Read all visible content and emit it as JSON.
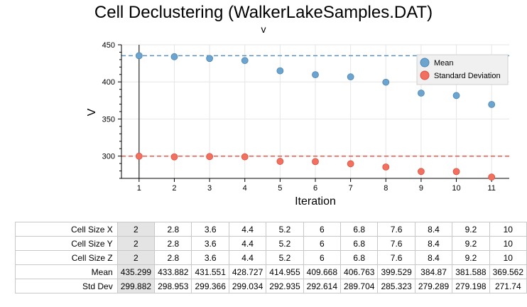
{
  "title": "Cell Declustering (WalkerLakeSamples.DAT)",
  "subtitle": "v",
  "chart_data": {
    "type": "scatter",
    "xlabel": "Iteration",
    "ylabel": "V",
    "x": [
      1,
      2,
      3,
      4,
      5,
      6,
      7,
      8,
      9,
      10,
      11
    ],
    "xlim": [
      0.5,
      11.5
    ],
    "ylim": [
      270,
      450
    ],
    "xticks": [
      "1",
      "2",
      "3",
      "4",
      "5",
      "6",
      "7",
      "8",
      "9",
      "10",
      "11"
    ],
    "yticks": [
      "300",
      "350",
      "400",
      "450"
    ],
    "grid": true,
    "legend_position": "top-right",
    "selected_iteration": 1,
    "series": [
      {
        "name": "Mean",
        "color": "#6aa4cf",
        "reference_value": 435.299,
        "values": [
          435.299,
          433.882,
          431.551,
          428.727,
          414.955,
          409.668,
          406.763,
          399.529,
          384.87,
          381.588,
          369.562
        ]
      },
      {
        "name": "Standard Deviation",
        "color": "#f2705f",
        "reference_value": 299.882,
        "values": [
          299.882,
          298.953,
          299.366,
          299.034,
          292.935,
          292.614,
          289.704,
          285.323,
          279.289,
          279.198,
          271.74
        ]
      }
    ]
  },
  "table": {
    "rows": [
      {
        "label": "Cell Size X",
        "values": [
          "2",
          "2.8",
          "3.6",
          "4.4",
          "5.2",
          "6",
          "6.8",
          "7.6",
          "8.4",
          "9.2",
          "10"
        ]
      },
      {
        "label": "Cell Size Y",
        "values": [
          "2",
          "2.8",
          "3.6",
          "4.4",
          "5.2",
          "6",
          "6.8",
          "7.6",
          "8.4",
          "9.2",
          "10"
        ]
      },
      {
        "label": "Cell Size Z",
        "values": [
          "2",
          "2.8",
          "3.6",
          "4.4",
          "5.2",
          "6",
          "6.8",
          "7.6",
          "8.4",
          "9.2",
          "10"
        ]
      },
      {
        "label": "Mean",
        "values": [
          "435.299",
          "433.882",
          "431.551",
          "428.727",
          "414.955",
          "409.668",
          "406.763",
          "399.529",
          "384.87",
          "381.588",
          "369.562"
        ]
      },
      {
        "label": "Std Dev",
        "values": [
          "299.882",
          "298.953",
          "299.366",
          "299.034",
          "292.935",
          "292.614",
          "289.704",
          "285.323",
          "279.289",
          "279.198",
          "271.74"
        ]
      }
    ]
  }
}
